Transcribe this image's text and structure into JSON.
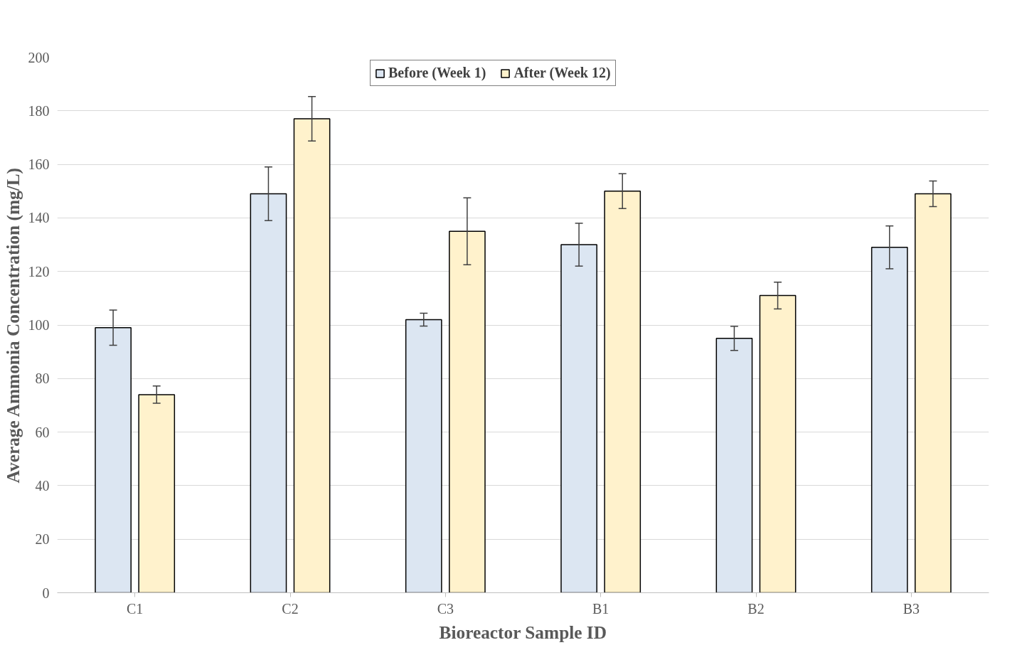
{
  "chart_data": {
    "type": "bar",
    "xlabel": "Bioreactor Sample ID",
    "ylabel": "Average Ammonia Concentration (mg/L)",
    "categories": [
      "C1",
      "C2",
      "C3",
      "B1",
      "B2",
      "B3"
    ],
    "series": [
      {
        "name": "Before (Week 1)",
        "color": "#dce6f2",
        "values": [
          99,
          149,
          102,
          130,
          95,
          129
        ],
        "errors": [
          6.6,
          10,
          2.4,
          8,
          4.5,
          8
        ]
      },
      {
        "name": "After (Week 12)",
        "color": "#fff2cc",
        "values": [
          74,
          177,
          135,
          150,
          111,
          149
        ],
        "errors": [
          3.2,
          8.3,
          12.5,
          6.5,
          5,
          4.8
        ]
      }
    ],
    "ylim": [
      0,
      200
    ],
    "yticks": [
      0,
      20,
      40,
      60,
      80,
      100,
      120,
      140,
      160,
      180,
      200
    ],
    "grid": "y",
    "legend": "top"
  }
}
